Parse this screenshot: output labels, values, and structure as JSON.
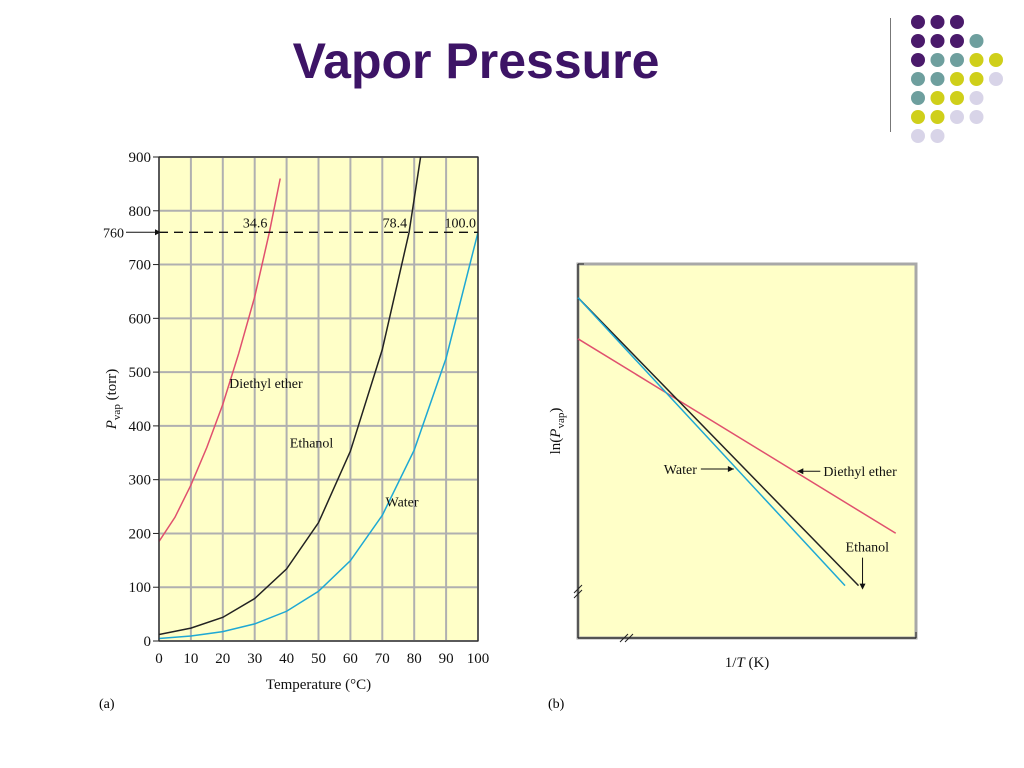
{
  "slide": {
    "title": "Vapor Pressure",
    "colors": {
      "title": "#3d1466",
      "plot_bg": "#ffffc8",
      "grid": "#b0b0b0"
    },
    "decoration": {
      "icon": "dot-grid",
      "dot_colors": {
        "purple": "#4a1a6b",
        "teal": "#6e9f9e",
        "yellow": "#cfcf1a",
        "lavender": "#d8d4e8"
      },
      "rows": [
        [
          "purple",
          "purple",
          "purple"
        ],
        [
          "purple",
          "purple",
          "purple",
          "teal"
        ],
        [
          "purple",
          "teal",
          "teal",
          "yellow",
          "yellow"
        ],
        [
          "teal",
          "teal",
          "yellow",
          "yellow",
          "lavender"
        ],
        [
          "teal",
          "yellow",
          "yellow",
          "lavender"
        ],
        [
          "yellow",
          "yellow",
          "lavender",
          "lavender"
        ],
        [
          "lavender",
          "lavender"
        ]
      ]
    }
  },
  "chart_data": [
    {
      "type": "line",
      "panel_label": "(a)",
      "xlabel": "Temperature (°C)",
      "ylabel_main": "P",
      "ylabel_sub": "vap",
      "ylabel_tail": " (torr)",
      "xlim": [
        0,
        100
      ],
      "ylim": [
        0,
        900
      ],
      "xticks": [
        0,
        10,
        20,
        30,
        40,
        50,
        60,
        70,
        80,
        90,
        100
      ],
      "yticks": [
        0,
        100,
        200,
        300,
        400,
        500,
        600,
        700,
        800,
        900
      ],
      "grid": true,
      "reference_line": {
        "y": 760,
        "label": "760",
        "style": "dashed"
      },
      "annotations": [
        {
          "text": "34.6",
          "x": 34.6
        },
        {
          "text": "78.4",
          "x": 78.4
        },
        {
          "text": "100.0",
          "x": 100.0
        }
      ],
      "series": [
        {
          "name": "Diethyl ether",
          "color": "#e0506e",
          "label_x": 22,
          "label_y": 470,
          "x": [
            0,
            5,
            10,
            15,
            20,
            25,
            30,
            34.6,
            38
          ],
          "y": [
            185,
            230,
            290,
            360,
            440,
            535,
            640,
            760,
            860
          ]
        },
        {
          "name": "Ethanol",
          "color": "#222222",
          "label_x": 41,
          "label_y": 360,
          "x": [
            0,
            10,
            20,
            30,
            40,
            50,
            60,
            70,
            78.4,
            82
          ],
          "y": [
            12,
            24,
            44,
            79,
            134,
            220,
            353,
            542,
            760,
            900
          ]
        },
        {
          "name": "Water",
          "color": "#1ea8d4",
          "label_x": 71,
          "label_y": 250,
          "x": [
            0,
            10,
            20,
            30,
            40,
            50,
            60,
            70,
            80,
            90,
            100
          ],
          "y": [
            4.6,
            9.2,
            17.5,
            31.8,
            55.3,
            92.5,
            149.4,
            233.7,
            355.1,
            525.8,
            760
          ]
        }
      ]
    },
    {
      "type": "line",
      "panel_label": "(b)",
      "xlabel_pre": "1/",
      "xlabel_var": "T",
      "xlabel_post": " (K)",
      "ylabel_pre": "ln(",
      "ylabel_var": "P",
      "ylabel_sub": "vap",
      "ylabel_post": ")",
      "xlim": [
        0,
        1
      ],
      "ylim": [
        0,
        1
      ],
      "axis_breaks": true,
      "series": [
        {
          "name": "Diethyl ether",
          "color": "#e0506e",
          "x": [
            0,
            0.94
          ],
          "y": [
            0.8,
            0.28
          ]
        },
        {
          "name": "Ethanol",
          "color": "#222222",
          "x": [
            0,
            0.83
          ],
          "y": [
            0.91,
            0.14
          ]
        },
        {
          "name": "Water",
          "color": "#1ea8d4",
          "x": [
            0,
            0.79
          ],
          "y": [
            0.91,
            0.14
          ]
        }
      ],
      "labels": [
        {
          "text": "Water",
          "target_series": "Water",
          "arrow": "right"
        },
        {
          "text": "Diethyl ether",
          "target_series": "Diethyl ether",
          "arrow": "left"
        },
        {
          "text": "Ethanol",
          "target_series": "Ethanol",
          "arrow": "down"
        }
      ]
    }
  ]
}
